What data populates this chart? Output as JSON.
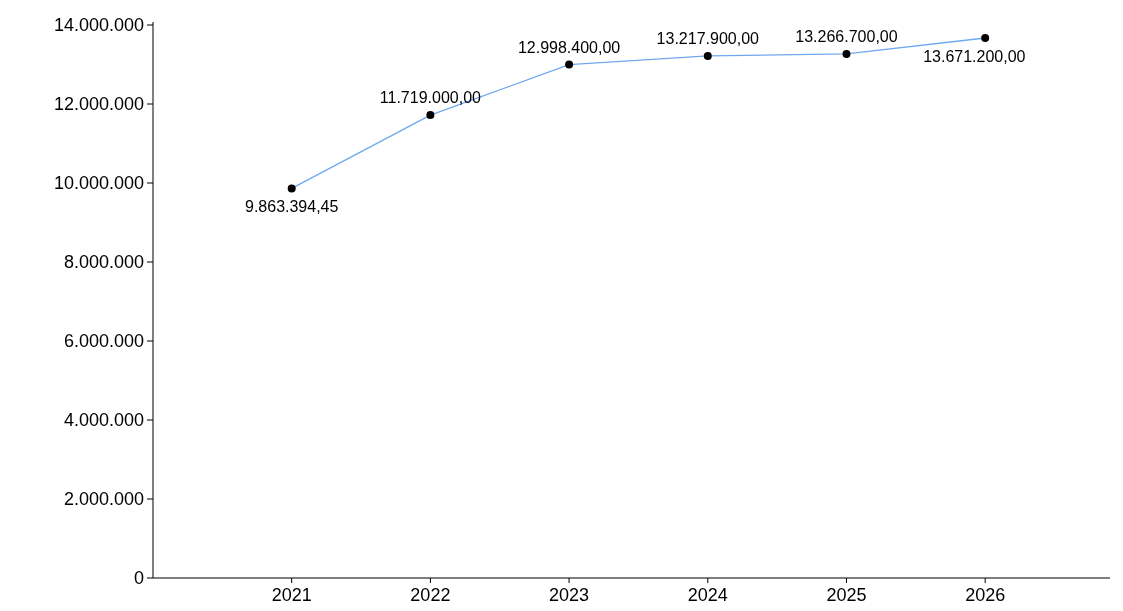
{
  "chart_data": {
    "type": "line",
    "x": [
      2021,
      2022,
      2023,
      2024,
      2025,
      2026
    ],
    "xlim": [
      2020,
      2026.9
    ],
    "xticks": [
      2021,
      2022,
      2023,
      2024,
      2025,
      2026
    ],
    "ylim": [
      0,
      14000000
    ],
    "yticks": [
      0,
      {
        "value": 2000000,
        "label": "2.000.000"
      },
      {
        "value": 4000000,
        "label": "4.000.000"
      },
      {
        "value": 6000000,
        "label": "6.000.000"
      },
      {
        "value": 8000000,
        "label": "8.000.000"
      },
      {
        "value": 10000000,
        "label": "10.000.000"
      },
      {
        "value": 12000000,
        "label": "12.000.000"
      },
      {
        "value": 14000000,
        "label": "14.000.000"
      }
    ],
    "series": [
      {
        "color": "#6fa8f0",
        "values": [
          9863394.45,
          11719000,
          12998400,
          13217900,
          13266700,
          13671200
        ],
        "value_labels": [
          "9.863.394,45",
          "11.719.000,00",
          "12.998.400,00",
          "13.217.900,00",
          "13.266.700,00",
          "13.671.200,00"
        ]
      }
    ],
    "marker": "circle",
    "line_style": "solid",
    "grid": false
  }
}
